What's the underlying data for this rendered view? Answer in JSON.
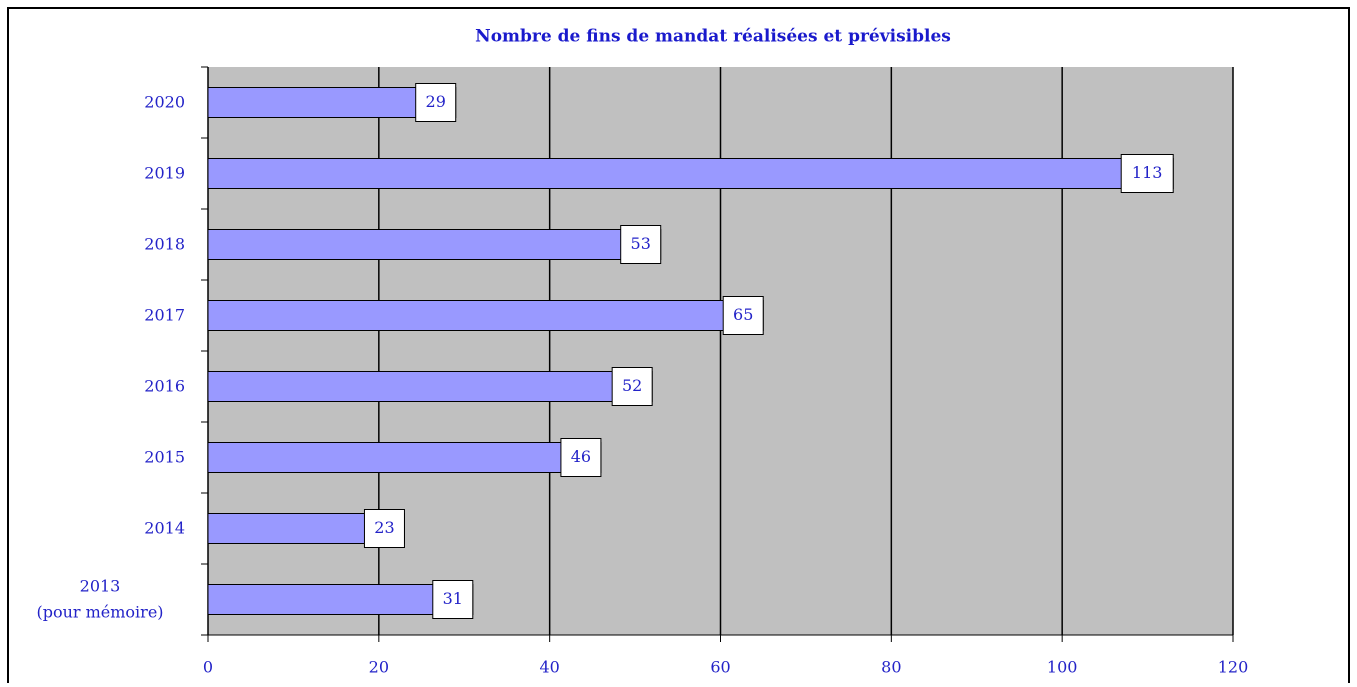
{
  "chart_data": {
    "type": "barh",
    "title": "Nombre de fins de mandat réalisées et prévisibles",
    "categories": [
      "2020",
      "2019",
      "2018",
      "2017",
      "2016",
      "2015",
      "2014",
      "2013\n(pour mémoire)"
    ],
    "values": [
      29,
      113,
      53,
      65,
      52,
      46,
      23,
      31
    ],
    "color": "#9999ff",
    "xlim": [
      0,
      120
    ],
    "xticks": [
      0,
      20,
      40,
      60,
      80,
      100,
      120
    ],
    "grid": true
  }
}
